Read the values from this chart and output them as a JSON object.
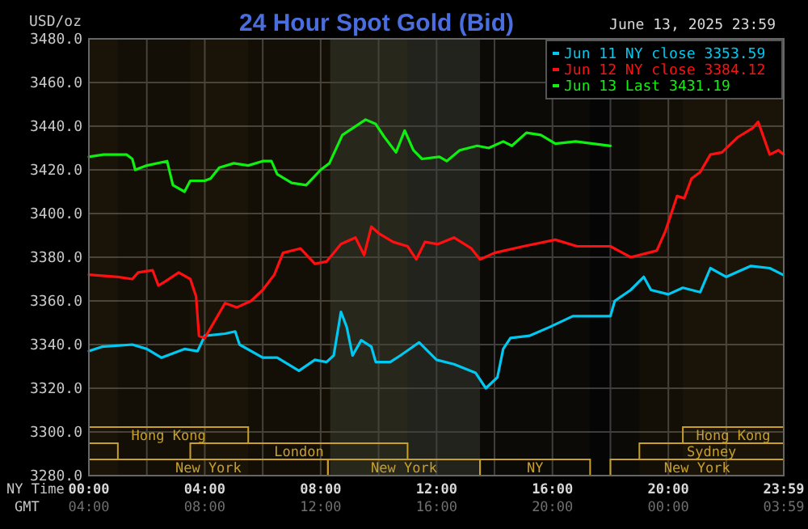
{
  "chart_data": {
    "type": "line",
    "title": "24 Hour Spot Gold (Bid)",
    "subtitle": "June 13, 2025 23:59",
    "ylabel": "USD/oz",
    "xlabel": "NY Time",
    "x2label": "GMT",
    "xlim": [
      0,
      23.983
    ],
    "ylim": [
      3280,
      3480
    ],
    "xticks": [
      {
        "value": 0,
        "label": "00:00"
      },
      {
        "value": 2,
        "label": null
      },
      {
        "value": 4,
        "label": "04:00"
      },
      {
        "value": 6,
        "label": null
      },
      {
        "value": 8,
        "label": "08:00"
      },
      {
        "value": 10,
        "label": null
      },
      {
        "value": 12,
        "label": "12:00"
      },
      {
        "value": 14,
        "label": null
      },
      {
        "value": 16,
        "label": "16:00"
      },
      {
        "value": 18,
        "label": null
      },
      {
        "value": 20,
        "label": "20:00"
      },
      {
        "value": 22,
        "label": null
      },
      {
        "value": 23.983,
        "label": "23:59"
      }
    ],
    "x2lim": [
      "2025-06-13T04:00",
      "2025-06-14T03:59"
    ],
    "x2ticks": [
      {
        "value": "2025-06-13T04:00",
        "label": "04:00"
      },
      {
        "value": "2025-06-13T08:00",
        "label": "08:00"
      },
      {
        "value": "2025-06-13T12:00",
        "label": "12:00"
      },
      {
        "value": "2025-06-13T16:00",
        "label": "16:00"
      },
      {
        "value": "2025-06-13T20:00",
        "label": "20:00"
      },
      {
        "value": "2025-06-14T00:00",
        "label": "00:00"
      },
      {
        "value": "2025-06-14T03:59",
        "label": "03:59"
      }
    ],
    "yticks": [
      {
        "value": 3280,
        "label": "3280.0"
      },
      {
        "value": 3300,
        "label": "3300.0"
      },
      {
        "value": 3320,
        "label": "3320.0"
      },
      {
        "value": 3340,
        "label": "3340.0"
      },
      {
        "value": 3360,
        "label": "3360.0"
      },
      {
        "value": 3380,
        "label": "3380.0"
      },
      {
        "value": 3400,
        "label": "3400.0"
      },
      {
        "value": 3420,
        "label": "3420.0"
      },
      {
        "value": 3440,
        "label": "3440.0"
      },
      {
        "value": 3460,
        "label": "3460.0"
      },
      {
        "value": 3480,
        "label": "3480.0"
      }
    ],
    "grid": true,
    "legend": "top right",
    "line_style": "solid",
    "marker": "none",
    "bands": [
      {
        "axis": "x",
        "from": 8.33,
        "to": 13.5,
        "color": "#1c1f1c"
      },
      {
        "axis": "x",
        "from": 0,
        "to": 5.5,
        "label": "Hong Kong",
        "color": "#c8a028"
      },
      {
        "axis": "x",
        "from": 20.5,
        "to": 23.983,
        "label": "Hong Kong",
        "color": "#c8a028"
      },
      {
        "axis": "x",
        "from": 0,
        "to": 1,
        "color": "#c8a028"
      },
      {
        "axis": "x",
        "from": 3.5,
        "to": 11,
        "label": "London",
        "color": "#c8a028"
      },
      {
        "axis": "x",
        "from": 19,
        "to": 23.983,
        "label": "Sydney",
        "color": "#c8a028"
      },
      {
        "axis": "x",
        "from": 0,
        "to": 8.25,
        "label": "New York",
        "color": "#c8a028"
      },
      {
        "axis": "x",
        "from": 8.25,
        "to": 13.5,
        "label": "New York",
        "color": "#c8a028"
      },
      {
        "axis": "x",
        "from": 13.5,
        "to": 17.3,
        "label": "NY",
        "color": "#c8a028"
      },
      {
        "axis": "x",
        "from": 18,
        "to": 23.983,
        "label": "New York",
        "color": "#c8a028"
      }
    ],
    "series": [
      {
        "name": "Jun 11 NY close 3353.59",
        "color": "#00c8f0",
        "x": [
          0,
          0.45,
          1.5,
          2.0,
          2.5,
          3.3,
          3.75,
          4.0,
          4.7,
          5.05,
          5.2,
          6.0,
          6.5,
          7.25,
          7.8,
          8.2,
          8.45,
          8.7,
          8.9,
          9.1,
          9.4,
          9.75,
          9.9,
          10.4,
          10.75,
          11.4,
          12.0,
          12.6,
          13.35,
          13.7,
          14.1,
          14.3,
          14.55,
          15.2,
          15.9,
          16.7,
          18.0,
          18.15,
          18.7,
          19.15,
          19.4,
          20.0,
          20.5,
          21.1,
          21.45,
          22.0,
          22.85,
          23.5,
          23.95
        ],
        "values": [
          3337,
          3339,
          3340,
          3338,
          3334,
          3338,
          3337,
          3344,
          3345,
          3346,
          3340,
          3334,
          3334,
          3328,
          3333,
          3332,
          3335,
          3355,
          3348,
          3335,
          3342,
          3339,
          3332,
          3332,
          3335,
          3341,
          3333,
          3331,
          3327,
          3320,
          3325,
          3338,
          3343,
          3344,
          3348,
          3353,
          3353,
          3360,
          3365,
          3371,
          3365,
          3363,
          3366,
          3364,
          3375,
          3371,
          3376,
          3375,
          3372
        ]
      },
      {
        "name": "Jun 12 NY close 3384.12",
        "color": "#ff1010",
        "x": [
          0,
          1.0,
          1.5,
          1.7,
          2.2,
          2.4,
          2.65,
          3.1,
          3.5,
          3.7,
          3.8,
          4.0,
          4.7,
          5.1,
          5.6,
          6.0,
          6.4,
          6.7,
          7.3,
          7.8,
          8.2,
          8.7,
          9.2,
          9.5,
          9.75,
          10.0,
          10.5,
          11.0,
          11.3,
          11.6,
          12.05,
          12.6,
          13.2,
          13.5,
          14.0,
          15.0,
          16.1,
          16.85,
          18.0,
          18.7,
          19.6,
          19.9,
          20.1,
          20.3,
          20.55,
          20.8,
          21.1,
          21.45,
          21.85,
          22.4,
          22.9,
          23.1,
          23.5,
          23.8,
          23.98
        ],
        "values": [
          3372,
          3371,
          3370,
          3373,
          3374,
          3367,
          3369,
          3373,
          3370,
          3362,
          3344,
          3343,
          3359,
          3357,
          3360,
          3365,
          3372,
          3382,
          3384,
          3377,
          3378,
          3386,
          3389,
          3381,
          3394,
          3391,
          3387,
          3385,
          3379,
          3387,
          3386,
          3389,
          3384,
          3379,
          3382,
          3385,
          3388,
          3385,
          3385,
          3380,
          3383,
          3392,
          3400,
          3408,
          3407,
          3416,
          3419,
          3427,
          3428,
          3435,
          3439,
          3442,
          3427,
          3429,
          3427
        ]
      },
      {
        "name": "Jun 13 Last 3431.19",
        "color": "#10f010",
        "x": [
          0,
          0.5,
          1.3,
          1.5,
          1.6,
          2.0,
          2.7,
          2.9,
          3.3,
          3.5,
          4.0,
          4.2,
          4.5,
          5.0,
          5.5,
          6.0,
          6.3,
          6.5,
          7.0,
          7.5,
          8.0,
          8.3,
          8.75,
          9.1,
          9.55,
          9.9,
          10.2,
          10.6,
          10.9,
          11.2,
          11.5,
          12.1,
          12.35,
          12.8,
          13.4,
          13.8,
          14.3,
          14.6,
          15.1,
          15.6,
          16.1,
          16.8,
          18.0
        ],
        "values": [
          3426,
          3427,
          3427,
          3425,
          3420,
          3422,
          3424,
          3413,
          3410,
          3415,
          3415,
          3416,
          3421,
          3423,
          3422,
          3424,
          3424,
          3418,
          3414,
          3413,
          3420,
          3423,
          3436,
          3439,
          3443,
          3441,
          3435,
          3428,
          3438,
          3429,
          3425,
          3426,
          3424,
          3429,
          3431,
          3430,
          3433,
          3431,
          3437,
          3436,
          3432,
          3433,
          3431
        ]
      }
    ]
  }
}
